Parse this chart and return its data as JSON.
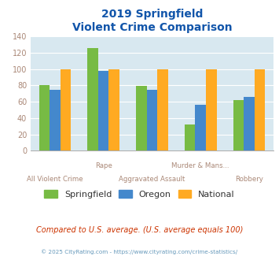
{
  "title_line1": "2019 Springfield",
  "title_line2": "Violent Crime Comparison",
  "categories": [
    "All Violent Crime",
    "Rape",
    "Aggravated Assault",
    "Murder & Mans...",
    "Robbery"
  ],
  "springfield": [
    80,
    126,
    79,
    32,
    62
  ],
  "oregon": [
    75,
    98,
    75,
    56,
    66
  ],
  "national": [
    100,
    100,
    100,
    100,
    100
  ],
  "color_springfield": "#77bb44",
  "color_oregon": "#4488cc",
  "color_national": "#ffaa22",
  "ylim": [
    0,
    140
  ],
  "yticks": [
    0,
    20,
    40,
    60,
    80,
    100,
    120,
    140
  ],
  "bg_color": "#d8e8f0",
  "note_text": "Compared to U.S. average. (U.S. average equals 100)",
  "copyright_text": "© 2025 CityRating.com - https://www.cityrating.com/crime-statistics/",
  "title_color": "#1155aa",
  "label_color": "#aa8877",
  "note_color": "#cc3300",
  "copyright_color": "#6699bb",
  "grid_color": "#ffffff",
  "bar_width": 0.22
}
